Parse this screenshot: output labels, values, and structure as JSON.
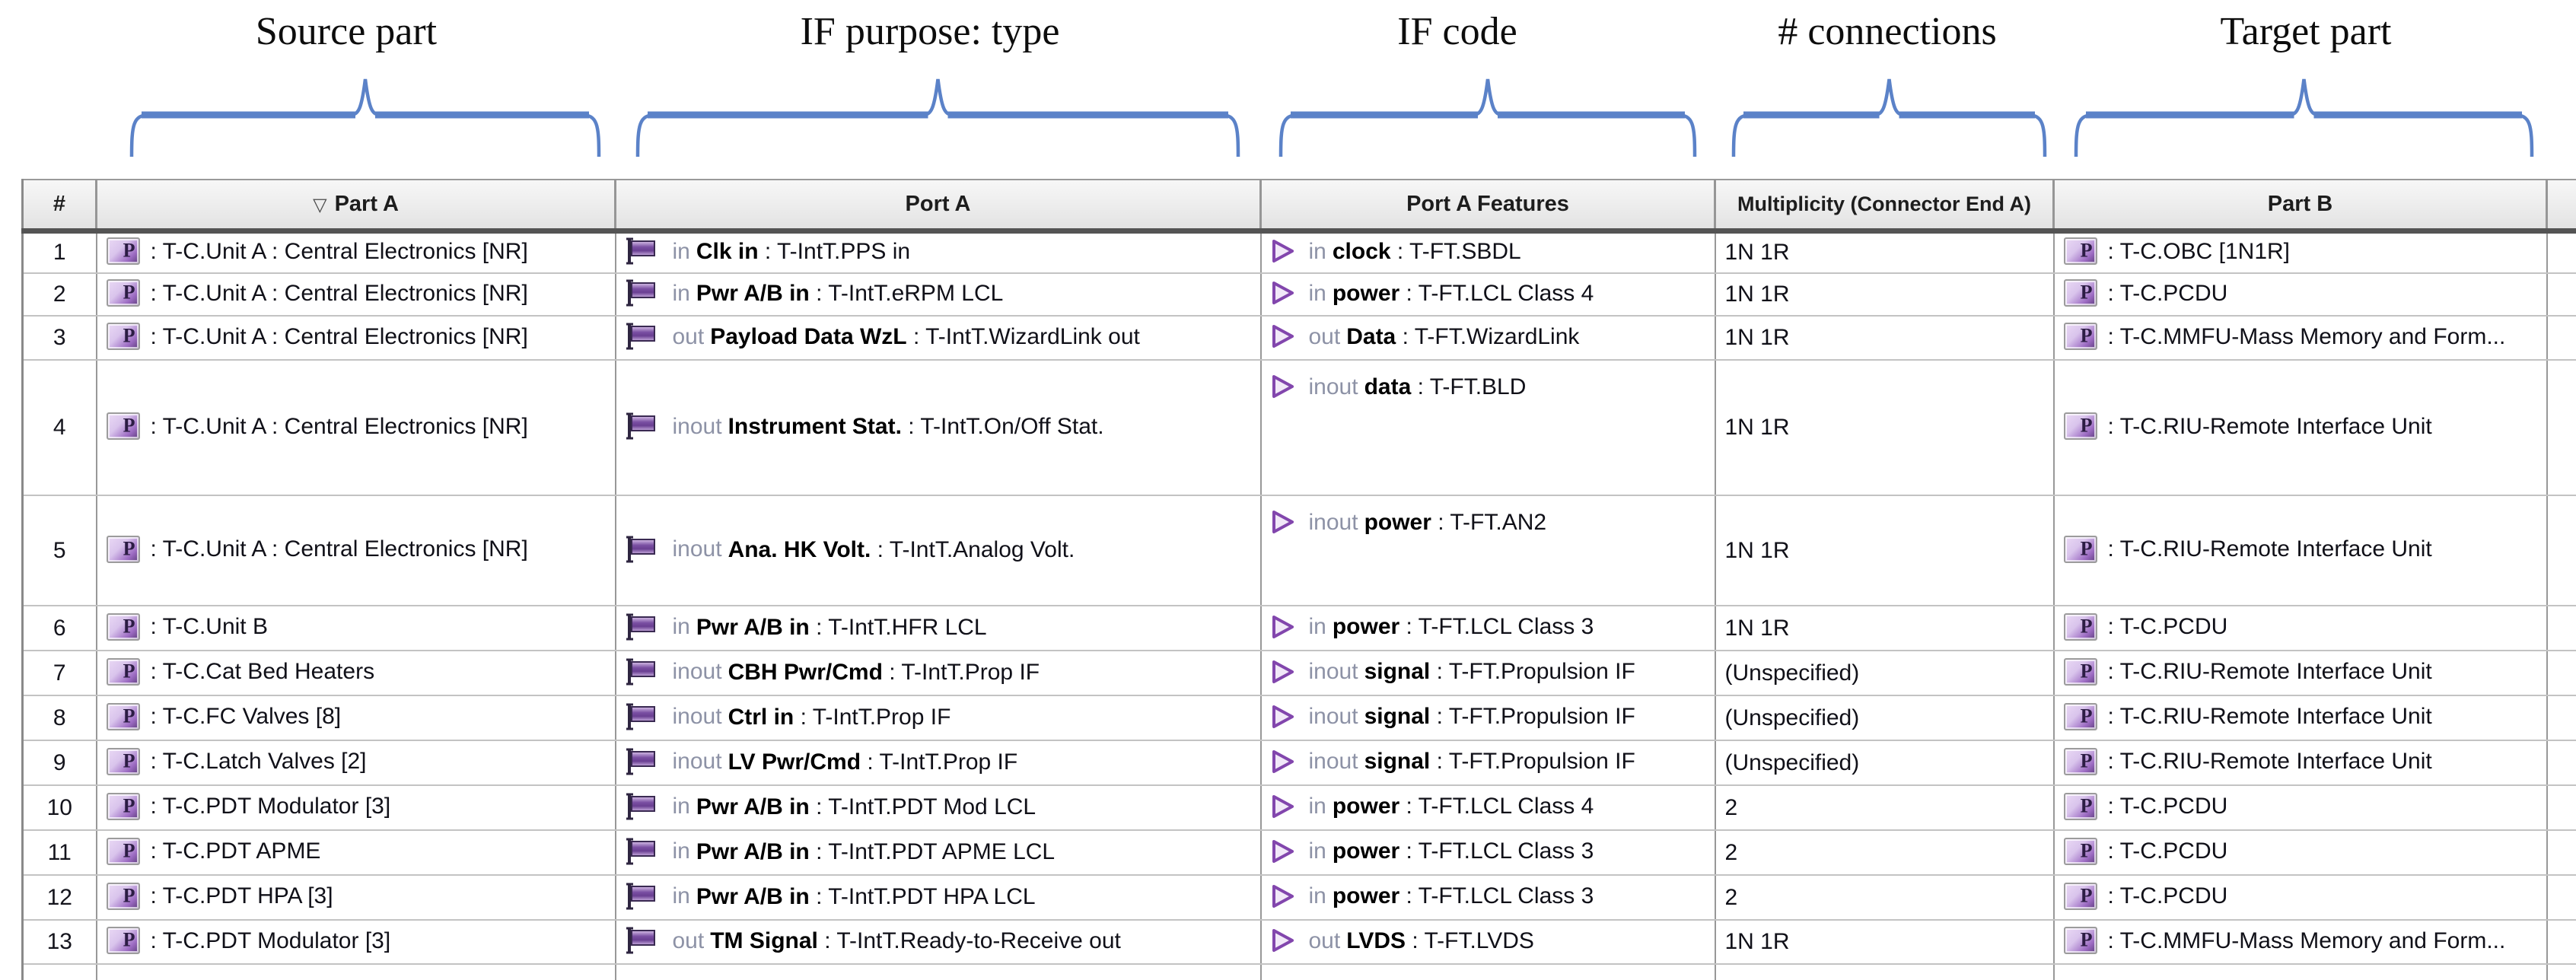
{
  "annotations": {
    "labels": [
      {
        "text": "Source part"
      },
      {
        "text": "IF purpose: type"
      },
      {
        "text": "IF code"
      },
      {
        "text": "# connections"
      },
      {
        "text": "Target part"
      }
    ]
  },
  "colors": {
    "brace": "#5b82c8",
    "text": "#101018",
    "muted": "#8d92a6",
    "purple_light": "#ead9f5",
    "purple_mid": "#9d6cc3",
    "purple_dark": "#5e3d7e"
  },
  "icons": {
    "part_letter": "P"
  },
  "table": {
    "sort_indicator": "▽",
    "columns": [
      "#",
      "Part A",
      "Port A",
      "Port A Features",
      "Multiplicity (Connector End A)",
      "Part B"
    ],
    "rows": [
      {
        "num": "1",
        "part_a": ": T-C.Unit A : Central Electronics [NR]",
        "port": {
          "dir": "in",
          "name": "Clk in",
          "rest": " : T-IntT.PPS in"
        },
        "feature": {
          "dir": "in",
          "name": "clock",
          "rest": " : T-FT.SBDL"
        },
        "multiplicity": "1N 1R",
        "part_b": ": T-C.OBC [1N1R]"
      },
      {
        "num": "2",
        "part_a": ": T-C.Unit A : Central Electronics [NR]",
        "port": {
          "dir": "in",
          "name": "Pwr A/B in",
          "rest": " : T-IntT.eRPM LCL"
        },
        "feature": {
          "dir": "in",
          "name": "power",
          "rest": " : T-FT.LCL Class 4"
        },
        "multiplicity": "1N 1R",
        "part_b": ": T-C.PCDU"
      },
      {
        "num": "3",
        "part_a": ": T-C.Unit A : Central Electronics [NR]",
        "port": {
          "dir": "out",
          "name": "Payload Data WzL",
          "rest": " : T-IntT.WizardLink out"
        },
        "feature": {
          "dir": "out",
          "name": "Data",
          "rest": " : T-FT.WizardLink"
        },
        "multiplicity": "1N 1R",
        "part_b": ": T-C.MMFU-Mass Memory and Form..."
      },
      {
        "num": "4",
        "part_a": ": T-C.Unit A : Central Electronics [NR]",
        "port": {
          "dir": "inout",
          "name": "Instrument Stat.",
          "rest": " : T-IntT.On/Off Stat."
        },
        "feature": {
          "dir": "inout",
          "name": "data",
          "rest": " : T-FT.BLD"
        },
        "multiplicity": "1N 1R",
        "part_b": ": T-C.RIU-Remote Interface Unit"
      },
      {
        "num": "5",
        "part_a": ": T-C.Unit A : Central Electronics [NR]",
        "port": {
          "dir": "inout",
          "name": "Ana. HK Volt.",
          "rest": " : T-IntT.Analog Volt."
        },
        "feature": {
          "dir": "inout",
          "name": "power",
          "rest": " : T-FT.AN2"
        },
        "multiplicity": "1N 1R",
        "part_b": ": T-C.RIU-Remote Interface Unit"
      },
      {
        "num": "6",
        "part_a": ": T-C.Unit B",
        "port": {
          "dir": "in",
          "name": "Pwr A/B in",
          "rest": " : T-IntT.HFR LCL"
        },
        "feature": {
          "dir": "in",
          "name": "power",
          "rest": " : T-FT.LCL Class 3"
        },
        "multiplicity": "1N 1R",
        "part_b": ": T-C.PCDU"
      },
      {
        "num": "7",
        "part_a": ": T-C.Cat Bed Heaters",
        "port": {
          "dir": "inout",
          "name": "CBH Pwr/Cmd",
          "rest": " : T-IntT.Prop IF"
        },
        "feature": {
          "dir": "inout",
          "name": "signal",
          "rest": " : T-FT.Propulsion IF"
        },
        "multiplicity": "(Unspecified)",
        "part_b": ": T-C.RIU-Remote Interface Unit"
      },
      {
        "num": "8",
        "part_a": ": T-C.FC Valves [8]",
        "port": {
          "dir": "inout",
          "name": "Ctrl in",
          "rest": " : T-IntT.Prop IF"
        },
        "feature": {
          "dir": "inout",
          "name": "signal",
          "rest": " : T-FT.Propulsion IF"
        },
        "multiplicity": "(Unspecified)",
        "part_b": ": T-C.RIU-Remote Interface Unit"
      },
      {
        "num": "9",
        "part_a": ": T-C.Latch Valves [2]",
        "port": {
          "dir": "inout",
          "name": "LV Pwr/Cmd",
          "rest": " : T-IntT.Prop IF"
        },
        "feature": {
          "dir": "inout",
          "name": "signal",
          "rest": " : T-FT.Propulsion IF"
        },
        "multiplicity": "(Unspecified)",
        "part_b": ": T-C.RIU-Remote Interface Unit"
      },
      {
        "num": "10",
        "part_a": ": T-C.PDT Modulator [3]",
        "port": {
          "dir": "in",
          "name": "Pwr A/B in",
          "rest": " : T-IntT.PDT Mod LCL"
        },
        "feature": {
          "dir": "in",
          "name": "power",
          "rest": " : T-FT.LCL Class 4"
        },
        "multiplicity": "2",
        "part_b": ": T-C.PCDU"
      },
      {
        "num": "11",
        "part_a": ": T-C.PDT APME",
        "port": {
          "dir": "in",
          "name": "Pwr A/B in",
          "rest": " : T-IntT.PDT APME LCL"
        },
        "feature": {
          "dir": "in",
          "name": "power",
          "rest": " : T-FT.LCL Class 3"
        },
        "multiplicity": "2",
        "part_b": ": T-C.PCDU"
      },
      {
        "num": "12",
        "part_a": ": T-C.PDT HPA [3]",
        "port": {
          "dir": "in",
          "name": "Pwr A/B in",
          "rest": " : T-IntT.PDT HPA LCL"
        },
        "feature": {
          "dir": "in",
          "name": "power",
          "rest": " : T-FT.LCL Class 3"
        },
        "multiplicity": "2",
        "part_b": ": T-C.PCDU"
      },
      {
        "num": "13",
        "part_a": ": T-C.PDT Modulator [3]",
        "port": {
          "dir": "out",
          "name": "TM Signal",
          "rest": " : T-IntT.Ready-to-Receive out"
        },
        "feature": {
          "dir": "out",
          "name": "LVDS",
          "rest": " : T-FT.LVDS"
        },
        "multiplicity": "1N 1R",
        "part_b": ": T-C.MMFU-Mass Memory and Form..."
      }
    ]
  }
}
